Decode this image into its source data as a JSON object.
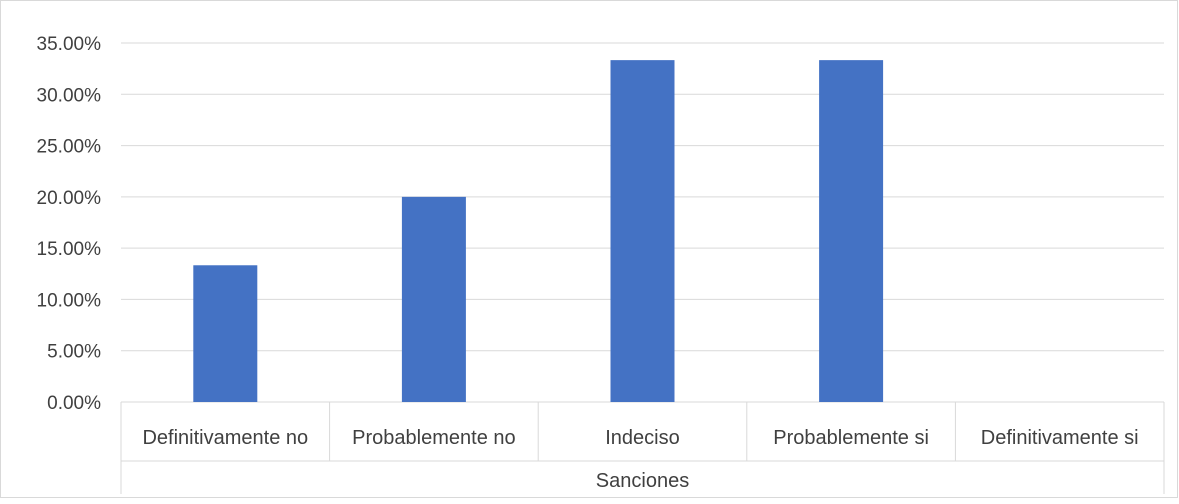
{
  "chart_data": {
    "type": "bar",
    "categories": [
      "Definitivamente no",
      "Probablemente no",
      "Indeciso",
      "Probablemente si",
      "Definitivamente si"
    ],
    "series": [
      {
        "values": [
          0.1333,
          0.2,
          0.3333,
          0.3333,
          0
        ]
      }
    ],
    "y_ticks": [
      "0.00%",
      "5.00%",
      "10.00%",
      "15.00%",
      "20.00%",
      "25.00%",
      "30.00%",
      "35.00%"
    ],
    "ylim": [
      0,
      0.35
    ],
    "xlabel": "Sanciones",
    "title": "",
    "ylabel": "",
    "grid": true,
    "legend": "none",
    "bar_color": "#4472C4",
    "gridline_color": "#d9d9d9"
  }
}
